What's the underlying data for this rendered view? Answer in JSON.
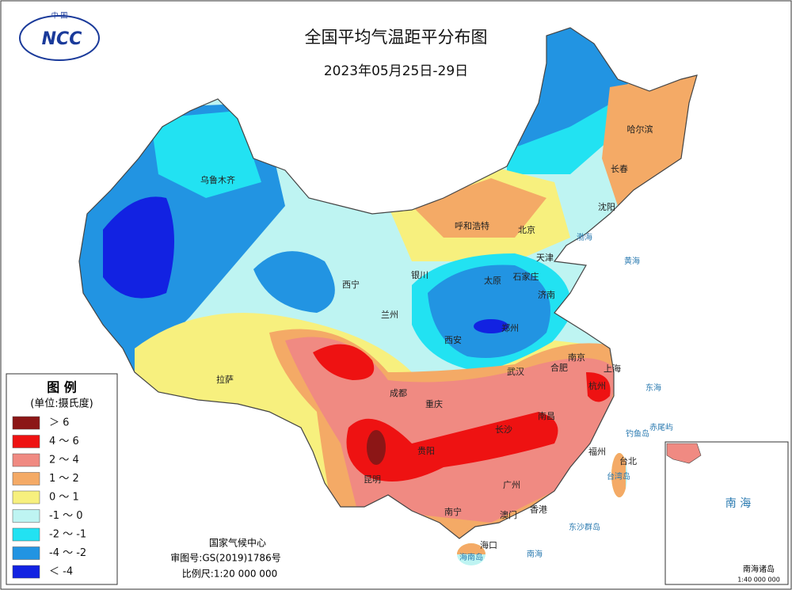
{
  "logo": {
    "top": "中 国",
    "text": "NCC"
  },
  "title": "全国平均气温距平分布图",
  "subtitle": "2023年05月25日-29日",
  "legend": {
    "title": "图 例",
    "unit": "(单位:摄氏度)",
    "items": [
      {
        "label": "＞ 6",
        "color": "#8c1616"
      },
      {
        "label": "4 ～ 6",
        "color": "#ee1212"
      },
      {
        "label": "2 ～ 4",
        "color": "#f08a82"
      },
      {
        "label": "1 ～ 2",
        "color": "#f4aa66"
      },
      {
        "label": "0 ～ 1",
        "color": "#f7f07e"
      },
      {
        "label": "-1 ～ 0",
        "color": "#bef4f2"
      },
      {
        "label": "-2 ～ -1",
        "color": "#22e2f2"
      },
      {
        "label": "-4 ～ -2",
        "color": "#2294e2"
      },
      {
        "label": "＜ -4",
        "color": "#1222e2"
      }
    ]
  },
  "cities": [
    "乌鲁木齐",
    "哈尔滨",
    "长春",
    "沈阳",
    "呼和浩特",
    "北京",
    "天津",
    "石家庄",
    "太原",
    "济南",
    "银川",
    "西宁",
    "兰州",
    "西安",
    "郑州",
    "南京",
    "合肥",
    "上海",
    "杭州",
    "武汉",
    "拉萨",
    "成都",
    "重庆",
    "南昌",
    "长沙",
    "贵阳",
    "昆明",
    "福州",
    "台北",
    "广州",
    "南宁",
    "澳门",
    "香港",
    "海口"
  ],
  "places": [
    "渤海",
    "黄海",
    "东海",
    "钓鱼岛",
    "赤尾屿",
    "台湾岛",
    "东沙群岛",
    "南海",
    "海南岛"
  ],
  "inset": {
    "title": "南 海",
    "label": "南海诸岛",
    "scale": "1:40 000 000"
  },
  "footer": {
    "agency": "国家气候中心",
    "map_no": "审图号:GS(2019)1786号",
    "scale": "比例尺:1:20 000 000"
  }
}
